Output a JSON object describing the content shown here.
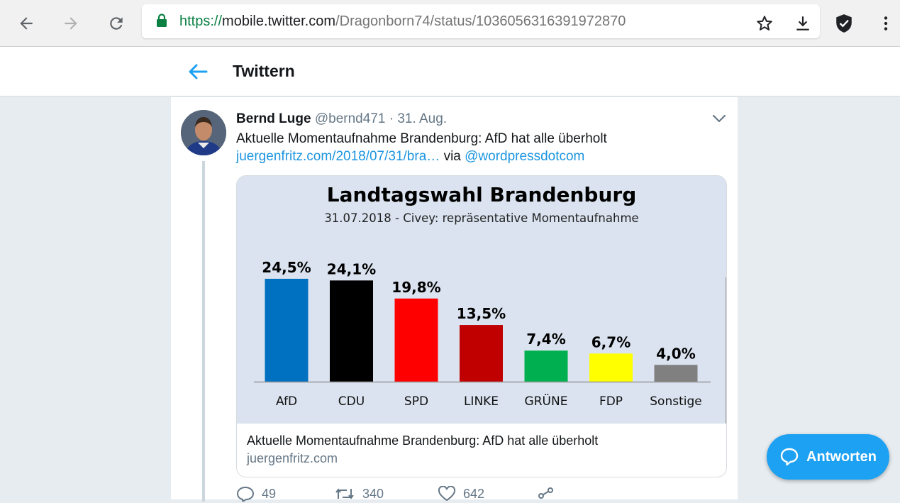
{
  "browser": {
    "url_scheme": "https://",
    "url_host": "mobile.twitter.com",
    "url_path": "/Dragonborn74/status/1036056316391972870"
  },
  "header": {
    "title": "Twittern"
  },
  "tweet": {
    "author_name": "Bernd Luge",
    "author_handle": "@bernd471",
    "separator": "·",
    "date": "31. Aug.",
    "text": "Aktuelle Momentaufnahme Brandenburg: AfD hat alle überholt",
    "link_text": "juergenfritz.com/2018/07/31/bra…",
    "via_text": "via",
    "mention": "@wordpressdotcom",
    "card": {
      "title": "Aktuelle Momentaufnahme Brandenburg: AfD hat alle überholt",
      "domain": "juergenfritz.com"
    },
    "actions": {
      "replies": "49",
      "retweets": "340",
      "likes": "642"
    }
  },
  "fab": {
    "label": "Antworten"
  },
  "colors": {
    "twitter_blue": "#1da1f2",
    "link_blue": "#1b95e0",
    "secure_green": "#0b8043"
  },
  "chart_data": {
    "type": "bar",
    "title": "Landtagswahl Brandenburg",
    "subtitle": "31.07.2018 - Civey: repräsentative Momentaufnahme",
    "categories": [
      "AfD",
      "CDU",
      "SPD",
      "LINKE",
      "GRÜNE",
      "FDP",
      "Sonstige"
    ],
    "values": [
      24.5,
      24.1,
      19.8,
      13.5,
      7.4,
      6.7,
      4.0
    ],
    "value_labels": [
      "24,5%",
      "24,1%",
      "19,8%",
      "13,5%",
      "7,4%",
      "6,7%",
      "4,0%"
    ],
    "colors": [
      "#0070c0",
      "#000000",
      "#ff0000",
      "#c00000",
      "#00b050",
      "#ffff00",
      "#808080"
    ],
    "ylim": [
      0,
      25
    ],
    "grid": false,
    "legend": "none"
  }
}
